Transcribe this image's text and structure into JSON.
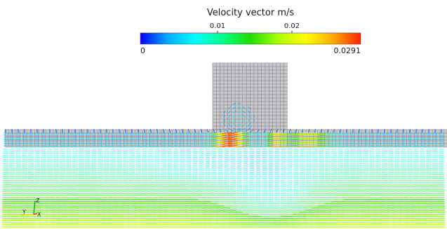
{
  "legend": {
    "title": "Velocity vector m/s",
    "range": [
      0,
      0.0291
    ],
    "min_label": "0",
    "max_label": "0.0291",
    "ticks": [
      {
        "value": 0.01,
        "label": "0.01"
      },
      {
        "value": 0.02,
        "label": "0.02"
      }
    ],
    "colormap": [
      "#0000ff",
      "#00aaff",
      "#00ffff",
      "#00ff88",
      "#22dd00",
      "#aaff00",
      "#ffff00",
      "#ffaa00",
      "#ff2200"
    ]
  },
  "axes_triad": {
    "z_label": "Z",
    "y_label": "Y",
    "x_label": "X",
    "colors": {
      "z": "#22aa22",
      "y": "#dddd00",
      "x": "#dd2222"
    }
  },
  "mesh": {
    "fill_color": "#c8c8cc",
    "line_color": "#7a7a80"
  }
}
